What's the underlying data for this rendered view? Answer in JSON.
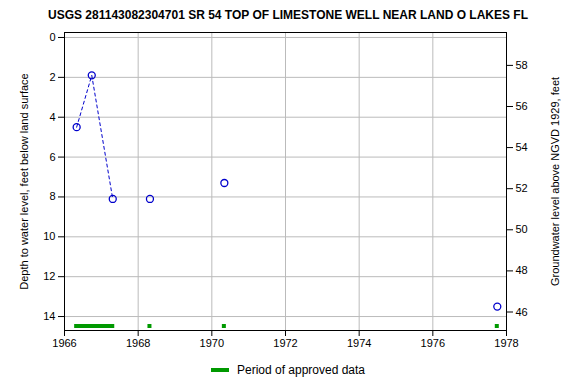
{
  "chart_data": {
    "type": "scatter",
    "title": "USGS 281143082304701 SR 54 TOP OF LIMESTONE WELL NEAR LAND O LAKES FL",
    "x_label": null,
    "y_label": "Depth to water level, feet below land surface",
    "y2_label": "Groundwater level above NGVD 1929, feet",
    "x": [
      1966.33,
      1966.74,
      1967.31,
      1968.32,
      1970.34,
      1977.75
    ],
    "series": [
      {
        "color": "#0000cc",
        "marker": "circle",
        "type": "scatter",
        "values": [
          4.5,
          1.9,
          8.1,
          8.1,
          7.3,
          13.5
        ]
      },
      {
        "color": "#0000cc",
        "type": "line",
        "line_style": "dashed",
        "values": [
          4.5,
          1.9,
          8.1,
          null,
          null,
          null
        ]
      }
    ],
    "approved_periods": {
      "label": "Period of approved data",
      "color": "#009900",
      "start": [
        1966.33,
        1968.32,
        1970.34,
        1977.75
      ],
      "end": [
        1967.31,
        1968.32,
        1970.34,
        1977.75
      ]
    },
    "xlim": [
      1966,
      1978
    ],
    "xticks": [
      1966,
      1968,
      1970,
      1972,
      1974,
      1976,
      1978
    ],
    "ylim": [
      -0.25,
      14.7
    ],
    "yticks": [
      0,
      2,
      4,
      6,
      8,
      10,
      12,
      14
    ],
    "y2lim": [
      45.1,
      59.6
    ],
    "y2ticks": [
      46,
      48,
      50,
      52,
      54,
      56,
      58
    ],
    "grid": true,
    "legend": "bottom"
  }
}
